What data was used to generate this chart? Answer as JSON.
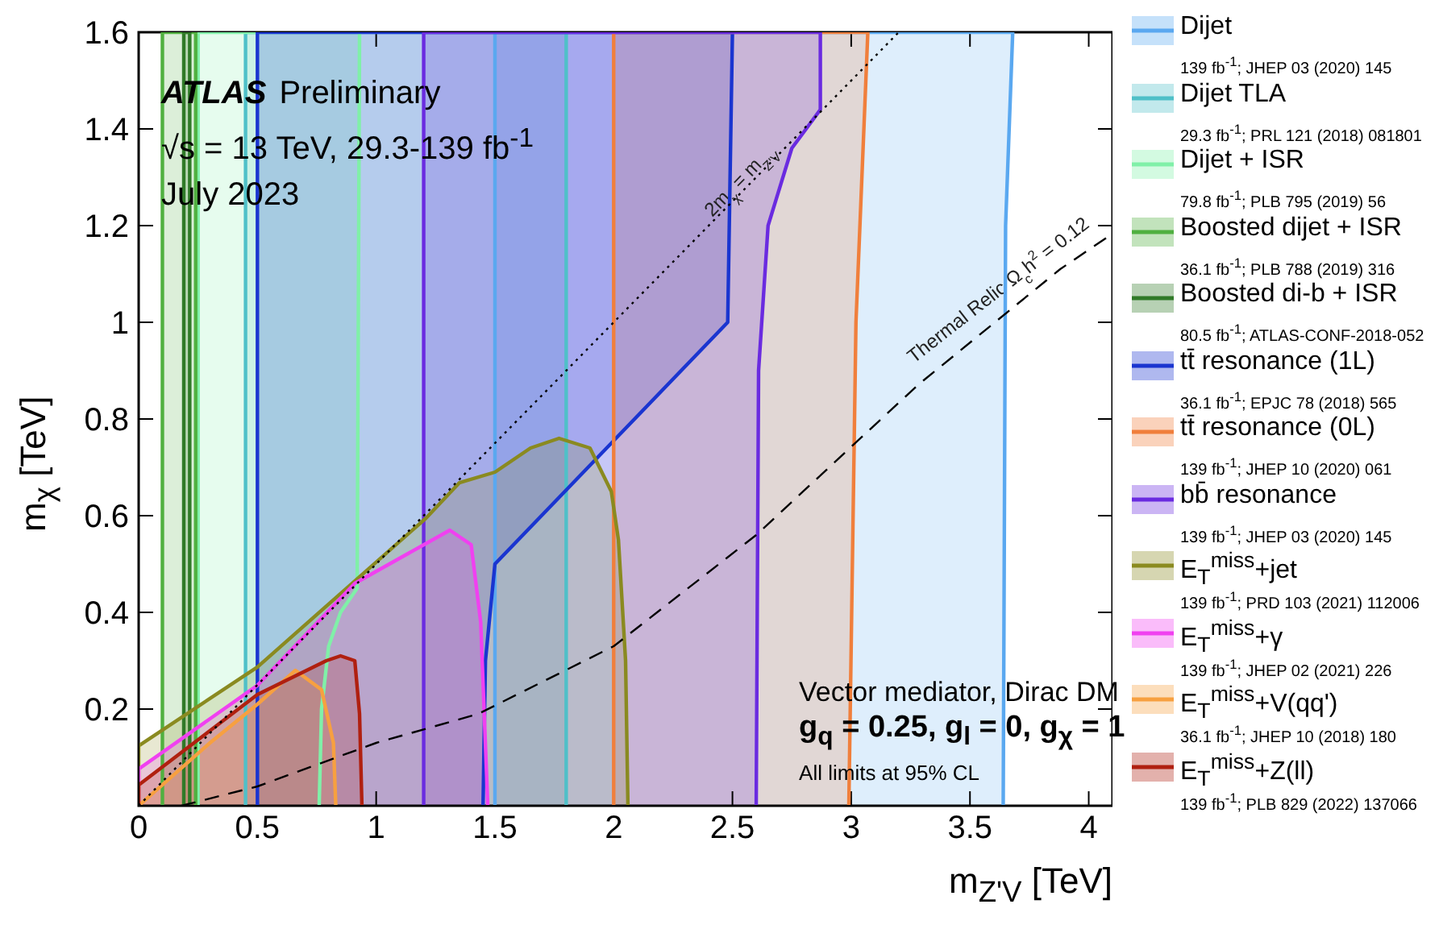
{
  "chart_data": {
    "type": "area",
    "xlabel": "m$_{Z'V}$ [TeV]",
    "ylabel": "m$_{χ}$ [TeV]",
    "title": "ATLAS Preliminary",
    "xlim": [
      0,
      4.1
    ],
    "xticks": [
      0,
      0.5,
      1,
      1.5,
      2,
      2.5,
      3,
      3.5,
      4
    ],
    "ylim": [
      0,
      1.6
    ],
    "yticks": [
      0.2,
      0.4,
      0.6,
      0.8,
      1,
      1.2,
      1.4,
      1.6
    ],
    "legend": "right",
    "series": [
      {
        "name": "Dijet",
        "color": "#5aa8f0",
        "x": [
          1.5,
          1.5,
          3.68,
          3.65,
          3.64
        ],
        "values": [
          0,
          1.6,
          1.6,
          1.2,
          0
        ]
      },
      {
        "name": "Dijet TLA",
        "color": "#4fc0c8",
        "x": [
          0.45,
          0.45,
          1.8,
          1.8
        ],
        "values": [
          0,
          1.6,
          1.6,
          0
        ]
      },
      {
        "name": "Dijet + ISR",
        "color": "#80f0a8",
        "x": [
          0.25,
          0.25,
          0.93,
          0.92,
          0.85,
          0.8,
          0.77,
          0.76
        ],
        "values": [
          0,
          1.6,
          1.6,
          0.45,
          0.4,
          0.33,
          0.2,
          0
        ]
      },
      {
        "name": "Boosted dijet + ISR",
        "color": "#50b040",
        "x": [
          0.1,
          0.1,
          0.24,
          0.24
        ],
        "values": [
          0,
          1.6,
          1.6,
          0
        ]
      },
      {
        "name": "Boosted di-b + ISR",
        "color": "#307a28",
        "x": [
          0.19,
          0.19,
          0.215,
          0.215
        ],
        "values": [
          0,
          1.6,
          1.6,
          0
        ]
      },
      {
        "name": "tt̄ resonance (1L)",
        "color": "#1a35d0",
        "x": [
          0.5,
          0.5,
          2.5,
          2.48,
          1.5,
          1.46,
          1.45
        ],
        "values": [
          0,
          1.6,
          1.6,
          1.0,
          0.5,
          0.3,
          0
        ]
      },
      {
        "name": "tt̄ resonance (0L)",
        "color": "#f07f3c",
        "x": [
          2.0,
          2.0,
          3.07,
          3.02,
          2.99
        ],
        "values": [
          0,
          1.6,
          1.6,
          1.0,
          0
        ]
      },
      {
        "name": "bb̄ resonance",
        "color": "#6a2be0",
        "x": [
          1.2,
          1.2,
          2.87,
          2.87,
          2.75,
          2.65,
          2.61,
          2.6
        ],
        "values": [
          0,
          1.6,
          1.6,
          1.44,
          1.36,
          1.2,
          0.9,
          0
        ]
      },
      {
        "name": "E$_{T}$$^{miss}$+jet",
        "color": "#8a8a20",
        "x": [
          0,
          0,
          0.5,
          1.21,
          1.35,
          1.5,
          1.65,
          1.77,
          1.9,
          1.99,
          2.02,
          2.05,
          2.06
        ],
        "values": [
          0,
          0.124,
          0.287,
          0.595,
          0.668,
          0.69,
          0.74,
          0.76,
          0.74,
          0.65,
          0.55,
          0.3,
          0
        ]
      },
      {
        "name": "E$_{T}$$^{miss}$+γ",
        "color": "#f040f0",
        "x": [
          0,
          0,
          0.5,
          0.91,
          1.31,
          1.4,
          1.44,
          1.47
        ],
        "values": [
          0,
          0.076,
          0.249,
          0.46,
          0.57,
          0.54,
          0.38,
          0
        ]
      },
      {
        "name": "E$_{T}$$^{miss}$+V(qq')",
        "color": "#f7a040",
        "x": [
          0,
          0.3,
          0.5,
          0.66,
          0.77,
          0.82,
          0.83
        ],
        "values": [
          0,
          0.13,
          0.21,
          0.28,
          0.24,
          0.13,
          0
        ]
      },
      {
        "name": "E$_{T}$$^{miss}$+Z(ll)",
        "color": "#b02010",
        "x": [
          0,
          0,
          0.5,
          0.79,
          0.85,
          0.91,
          0.93,
          0.94
        ],
        "values": [
          0,
          0.043,
          0.23,
          0.3,
          0.31,
          0.3,
          0.19,
          0
        ]
      },
      {
        "name": "2m$_{χ}$ = m$_{Z'V}$",
        "type": "line",
        "line_style": "dotted",
        "color": "#000000",
        "x": [
          0,
          3.2
        ],
        "values": [
          0,
          1.6
        ]
      },
      {
        "name": "Thermal Relic Ω$_{c}$h$^{2}$ = 0.12",
        "type": "line",
        "line_style": "dashed",
        "color": "#000000",
        "x": [
          0.18,
          0.5,
          1.0,
          1.43,
          2.0,
          2.6,
          3.28,
          3.88,
          4.09
        ],
        "values": [
          0,
          0.04,
          0.13,
          0.19,
          0.33,
          0.56,
          0.87,
          1.11,
          1.18
        ]
      }
    ],
    "annotations": [
      "139 fb$^{-1}$; JHEP 03 (2020) 145",
      "29.3 fb$^{-1}$; PRL 121 (2018) 081801",
      "79.8 fb$^{-1}$; PLB 795 (2019) 56",
      "36.1 fb$^{-1}$; PLB 788 (2019) 316",
      "80.5 fb$^{-1}$; ATLAS-CONF-2018-052",
      "36.1 fb$^{-1}$; EPJC 78 (2018) 565",
      "139 fb$^{-1}$; JHEP 10 (2020) 061",
      "139 fb$^{-1}$; JHEP 03 (2020) 145",
      "139 fb$^{-1}$; PRD 103 (2021) 112006",
      "139 fb$^{-1}$; JHEP 02 (2021) 226",
      "36.1 fb$^{-1}$; JHEP 10 (2018) 180",
      "139 fb$^{-1}$; PLB 829 (2022) 137066",
      "√s = 13 TeV, 29.3-139 fb$^{-1}$",
      "July 2023",
      "Vector mediator, Dirac DM",
      "g$_{q}$ = 0.25, g$_{l}$ = 0, g$_{χ}$ = 1",
      "All limits at 95% CL"
    ]
  }
}
